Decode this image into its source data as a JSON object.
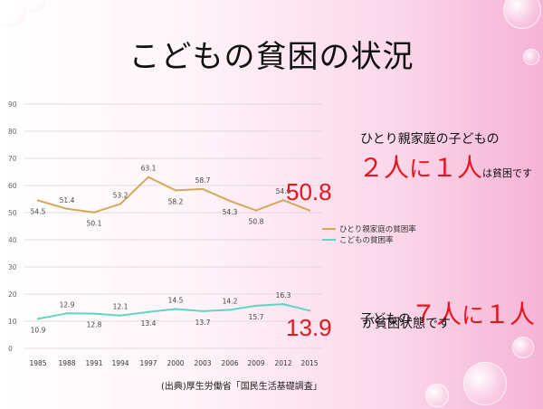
{
  "slide": {
    "title": "こどもの貧困の状況"
  },
  "chart_data": {
    "type": "line",
    "categories": [
      "1985",
      "1988",
      "1991",
      "1994",
      "1997",
      "2000",
      "2003",
      "2006",
      "2009",
      "2012",
      "2015"
    ],
    "ylim": [
      0,
      90
    ],
    "yticks": [
      0,
      10,
      20,
      30,
      40,
      50,
      60,
      70,
      80,
      90
    ],
    "series": [
      {
        "name": "ひとり親家庭の貧困率",
        "color": "#d4a85a",
        "values": [
          54.5,
          51.4,
          50.1,
          53.2,
          63.1,
          58.2,
          58.7,
          54.3,
          50.8,
          54.6,
          50.8
        ],
        "labels": [
          "54.5",
          "51.4",
          "50.1",
          "53.2",
          "63.1",
          "58.2",
          "58.7",
          "54.3",
          "50.8",
          "54.6",
          ""
        ]
      },
      {
        "name": "こどもの貧困率",
        "color": "#5fd5c2",
        "values": [
          10.9,
          12.9,
          12.8,
          12.1,
          13.4,
          14.5,
          13.7,
          14.2,
          15.7,
          16.3,
          13.9
        ],
        "labels": [
          "10.9",
          "12.9",
          "12.8",
          "12.1",
          "13.4",
          "14.5",
          "13.7",
          "14.2",
          "15.7",
          "16.3",
          ""
        ]
      }
    ],
    "callouts": {
      "single_parent_2015": "50.8",
      "child_2015": "13.9"
    },
    "legend": "right"
  },
  "notes": {
    "line1": "ひとり親家庭の子どもの",
    "line2": {
      "n1": "２人",
      "t1": "に",
      "n2": "１人",
      "t2": "は貧困です"
    },
    "line3": {
      "t1": "子どもの",
      "n1": "７人",
      "t2": "に",
      "n2": "１人"
    },
    "line4": "が貧困状態です"
  },
  "source": "(出典)厚生労働省「国民生活基礎調査」"
}
